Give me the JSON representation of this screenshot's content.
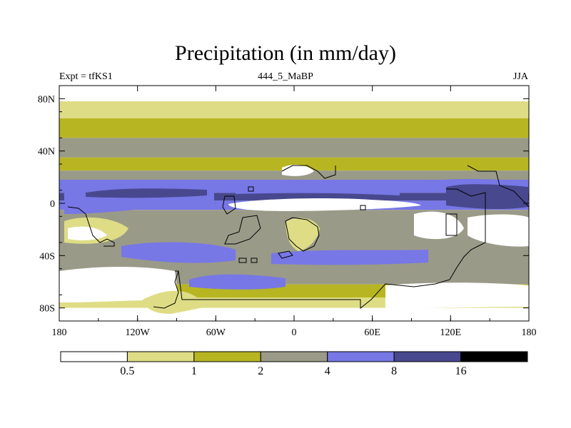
{
  "title": "Precipitation (in mm/day)",
  "subtitle_left": "Expt = tfKS1",
  "subtitle_center": "444_5_MaBP",
  "subtitle_right": "JJA",
  "y_ticks": [
    {
      "lat": 80,
      "label": "80N"
    },
    {
      "lat": 40,
      "label": "40N"
    },
    {
      "lat": 0,
      "label": "0"
    },
    {
      "lat": -40,
      "label": "40S"
    },
    {
      "lat": -80,
      "label": "80S"
    }
  ],
  "x_ticks": [
    {
      "lon": -180,
      "label": "180"
    },
    {
      "lon": -120,
      "label": "120W"
    },
    {
      "lon": -60,
      "label": "60W"
    },
    {
      "lon": 0,
      "label": "0"
    },
    {
      "lon": 60,
      "label": "60E"
    },
    {
      "lon": 120,
      "label": "120E"
    },
    {
      "lon": 180,
      "label": "180"
    }
  ],
  "colorbar": {
    "levels": [
      "0.5",
      "1",
      "2",
      "4",
      "8",
      "16"
    ],
    "colors": [
      "#ffffff",
      "#dedd86",
      "#b7b622",
      "#9a9a88",
      "#7777e6",
      "#48488f",
      "#000000"
    ]
  },
  "bands": [
    {
      "lat_top": 90,
      "lat_bot": 78,
      "color": "#ffffff"
    },
    {
      "lat_top": 78,
      "lat_bot": 65,
      "color": "#dedd86"
    },
    {
      "lat_top": 65,
      "lat_bot": 50,
      "color": "#b7b622"
    },
    {
      "lat_top": 50,
      "lat_bot": 35,
      "color": "#9a9a88"
    },
    {
      "lat_top": 35,
      "lat_bot": 25,
      "color": "#b7b622"
    },
    {
      "lat_top": 25,
      "lat_bot": 18,
      "color": "#9a9a88"
    },
    {
      "lat_top": 18,
      "lat_bot": 8,
      "color": "#7777e6"
    },
    {
      "lat_top": 8,
      "lat_bot": 2,
      "color": "#48488f"
    },
    {
      "lat_top": 2,
      "lat_bot": -5,
      "color": "#7777e6"
    },
    {
      "lat_top": -5,
      "lat_bot": -45,
      "color": "#9a9a88"
    },
    {
      "lat_top": -45,
      "lat_bot": -62,
      "color": "#9a9a88"
    },
    {
      "lat_top": -62,
      "lat_bot": -72,
      "color": "#b7b622"
    },
    {
      "lat_top": -72,
      "lat_bot": -80,
      "color": "#dedd86"
    },
    {
      "lat_top": -80,
      "lat_bot": -90,
      "color": "#ffffff"
    }
  ]
}
